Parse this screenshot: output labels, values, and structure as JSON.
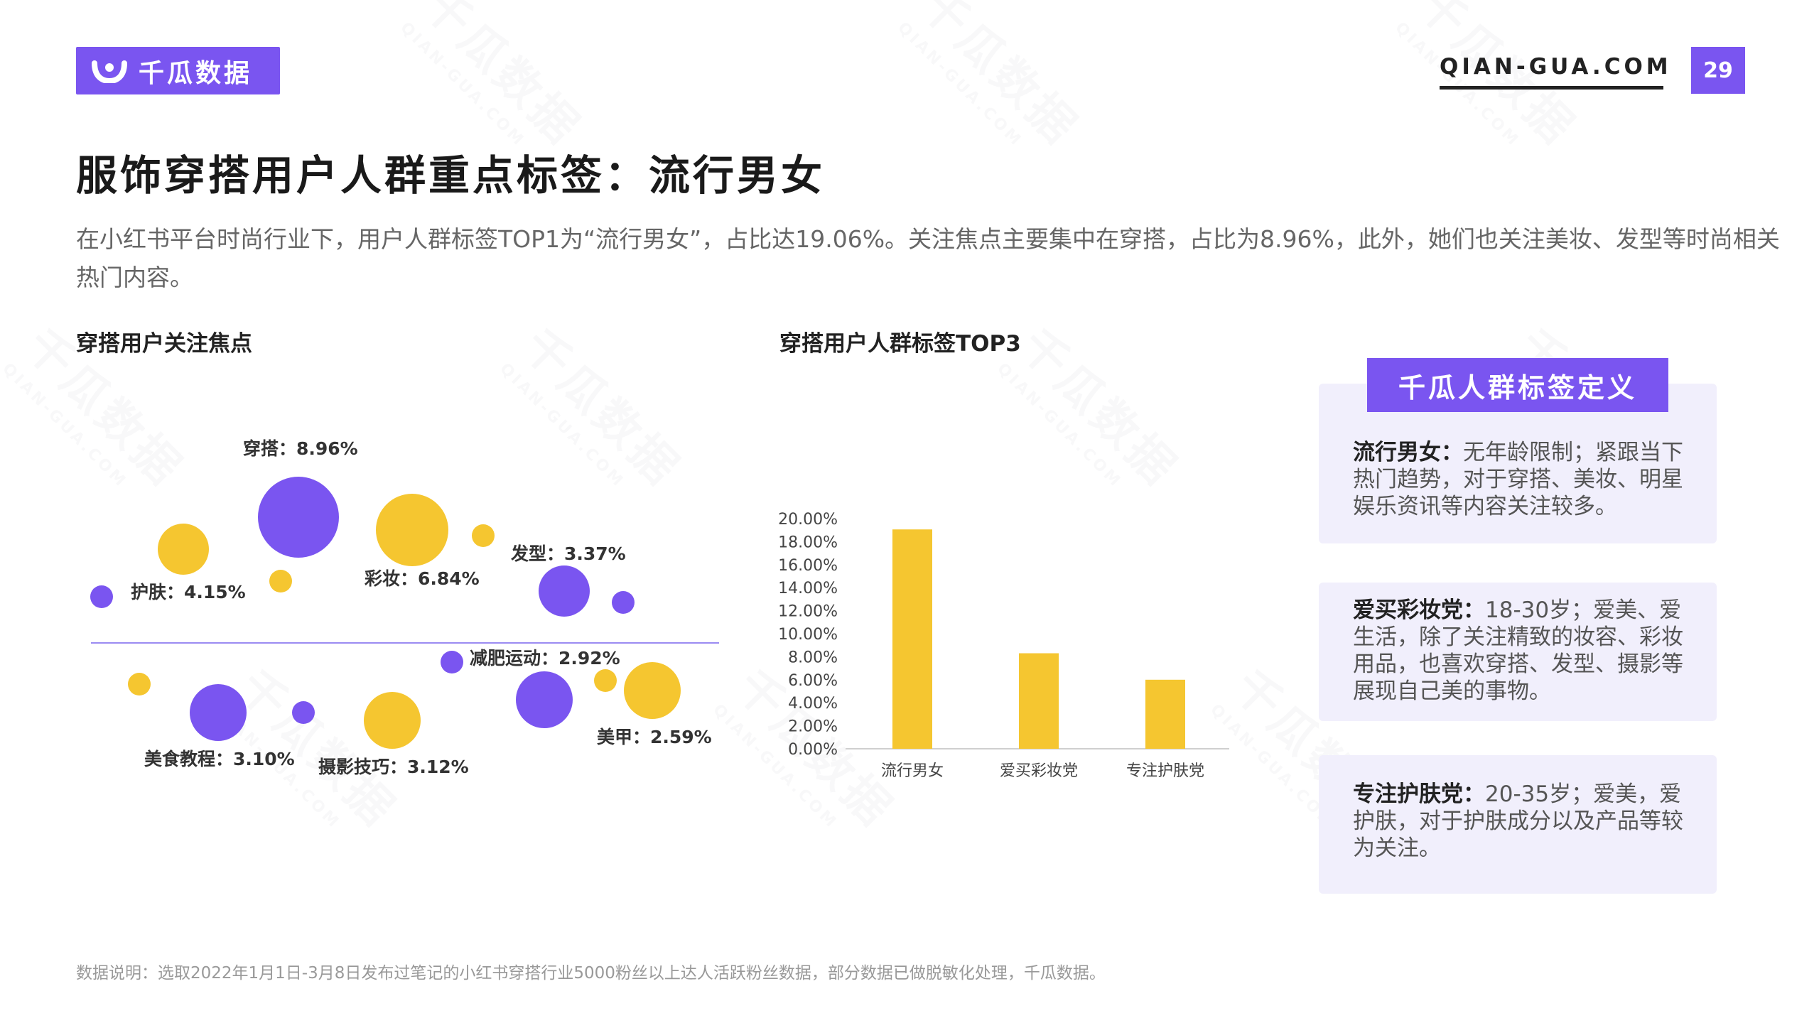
{
  "brand": {
    "name": "千瓜数据",
    "site": "QIAN-GUA.COM",
    "page_number": "29"
  },
  "title": "服饰穿搭用户人群重点标签：流行男女",
  "description": "在小红书平台时尚行业下，用户人群标签TOP1为“流行男女”，占比达19.06%。关注焦点主要集中在穿搭，占比为8.96%，此外，她们也关注美妆、发型等时尚相关热门内容。",
  "bubble_section": {
    "title": "穿搭用户关注焦点",
    "labels": {
      "chuanda": "穿搭：8.96%",
      "hufu": "护肤：4.15%",
      "caizhuang": "彩妆：6.84%",
      "faxing": "发型：3.37%",
      "jianfei": "减肥运动：2.92%",
      "meishi": "美食教程：3.10%",
      "sheying": "摄影技巧：3.12%",
      "meijia": "美甲：2.59%"
    },
    "colors": {
      "purple": "#7a55f0",
      "yellow": "#f5c630"
    }
  },
  "bar_section": {
    "title": "穿搭用户人群标签TOP3"
  },
  "chart_data": {
    "type": "bar",
    "categories": [
      "流行男女",
      "爱买彩妆党",
      "专注护肤党"
    ],
    "values": [
      19.06,
      8.3,
      6.0
    ],
    "yticks": [
      "20.00%",
      "18.00%",
      "16.00%",
      "14.00%",
      "12.00%",
      "10.00%",
      "8.00%",
      "6.00%",
      "4.00%",
      "2.00%",
      "0.00%"
    ],
    "ylim": [
      0,
      20
    ],
    "bar_color": "#f5c630",
    "grid": false
  },
  "definitions": {
    "heading": "千瓜人群标签定义",
    "items": [
      {
        "name": "流行男女：",
        "text": "无年龄限制；紧跟当下热门趋势，对于穿搭、美妆、明星娱乐资讯等内容关注较多。"
      },
      {
        "name": "爱买彩妆党：",
        "text": "18-30岁；爱美、爱生活，除了关注精致的妆容、彩妆用品，也喜欢穿搭、发型、摄影等展现自己美的事物。"
      },
      {
        "name": "专注护肤党：",
        "text": "20-35岁；爱美，爱护肤，对于护肤成分以及产品等较为关注。"
      }
    ]
  },
  "footnote": "数据说明：选取2022年1月1日-3月8日发布过笔记的小红书穿搭行业5000粉丝以上达人活跃粉丝数据，部分数据已做脱敏化处理，千瓜数据。"
}
